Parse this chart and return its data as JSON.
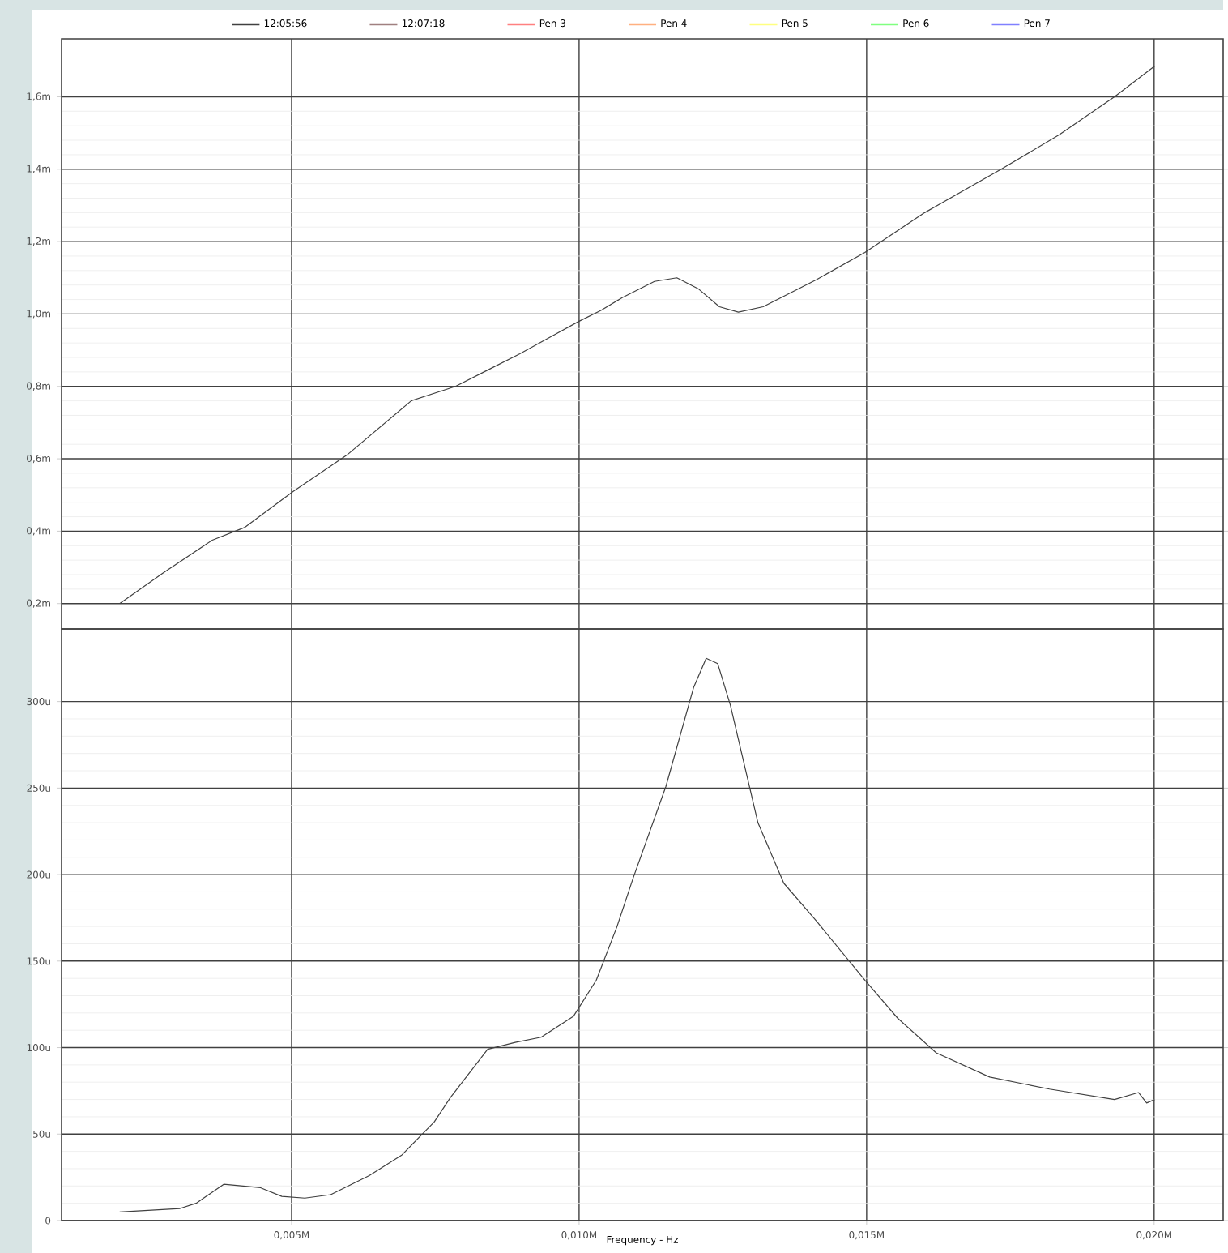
{
  "chart_data": [
    {
      "type": "line",
      "xlim": [
        0.001,
        0.0212
      ],
      "ylim": [
        0.13,
        1.76
      ],
      "xticks": [
        0.005,
        0.01,
        0.015,
        0.02
      ],
      "yticks": [
        {
          "value": 0.2,
          "label": "0,2m"
        },
        {
          "value": 0.4,
          "label": "0,4m"
        },
        {
          "value": 0.6,
          "label": "0,6m"
        },
        {
          "value": 0.8,
          "label": "0,8m"
        },
        {
          "value": 1.0,
          "label": "1,0m"
        },
        {
          "value": 1.2,
          "label": "1,2m"
        },
        {
          "value": 1.4,
          "label": "1,4m"
        },
        {
          "value": 1.6,
          "label": "1,6m"
        }
      ],
      "tick_labels": "y",
      "grid": true,
      "legend": "top",
      "series": [
        {
          "name": "12:05:56",
          "color": "#404040",
          "x": [
            0.00201,
            0.00277,
            0.00362,
            0.00418,
            0.00503,
            0.00596,
            0.00708,
            0.00785,
            0.00841,
            0.00897,
            0.00954,
            0.01,
            0.01038,
            0.01075,
            0.01131,
            0.0117,
            0.01207,
            0.01244,
            0.01277,
            0.0132,
            0.01413,
            0.01497,
            0.01601,
            0.01734,
            0.01835,
            0.01931,
            0.02001
          ],
          "values": [
            0.2,
            0.285,
            0.375,
            0.41,
            0.51,
            0.61,
            0.76,
            0.8,
            0.845,
            0.89,
            0.94,
            0.98,
            1.01,
            1.045,
            1.09,
            1.1,
            1.07,
            1.02,
            1.005,
            1.02,
            1.095,
            1.17,
            1.28,
            1.4,
            1.495,
            1.6,
            1.685
          ]
        },
        {
          "name": "12:07:18",
          "color": "#a08080"
        },
        {
          "name": "Pen  3",
          "color": "#ff8080"
        },
        {
          "name": "Pen  4",
          "color": "#ffb080"
        },
        {
          "name": "Pen  5",
          "color": "#ffff80"
        },
        {
          "name": "Pen  6",
          "color": "#80ff80"
        },
        {
          "name": "Pen  7",
          "color": "#8080ff"
        }
      ]
    },
    {
      "type": "line",
      "xlabel": "Frequency - Hz",
      "xlim": [
        0.001,
        0.0212
      ],
      "ylim": [
        0,
        342
      ],
      "xticks": [
        {
          "value": 0.005,
          "label": "0,005M"
        },
        {
          "value": 0.01,
          "label": "0,010M"
        },
        {
          "value": 0.015,
          "label": "0,015M"
        },
        {
          "value": 0.02,
          "label": "0,020M"
        }
      ],
      "yticks": [
        {
          "value": 0,
          "label": "0"
        },
        {
          "value": 50,
          "label": "50u"
        },
        {
          "value": 100,
          "label": "100u"
        },
        {
          "value": 150,
          "label": "150u"
        },
        {
          "value": 200,
          "label": "200u"
        },
        {
          "value": 250,
          "label": "250u"
        },
        {
          "value": 300,
          "label": "300u"
        }
      ],
      "grid": true,
      "series": [
        {
          "color": "#404040",
          "x": [
            0.00201,
            0.00306,
            0.00334,
            0.00382,
            0.00446,
            0.00483,
            0.00523,
            0.00568,
            0.00635,
            0.00692,
            0.00748,
            0.00776,
            0.00841,
            0.00889,
            0.00934,
            0.0099,
            0.0103,
            0.01066,
            0.01094,
            0.01151,
            0.01199,
            0.01221,
            0.01241,
            0.01263,
            0.01311,
            0.01356,
            0.01413,
            0.01497,
            0.01554,
            0.01621,
            0.01714,
            0.01818,
            0.01931,
            0.01973,
            0.01987,
            0.02001
          ],
          "values": [
            5,
            7,
            10,
            21,
            19,
            14,
            13,
            15,
            26,
            38,
            57,
            71,
            99,
            103,
            106,
            118,
            139,
            170,
            198,
            251,
            308,
            325,
            322,
            298,
            230,
            195,
            173,
            139,
            117,
            97,
            83,
            76,
            70,
            74,
            68,
            70
          ]
        }
      ]
    }
  ]
}
